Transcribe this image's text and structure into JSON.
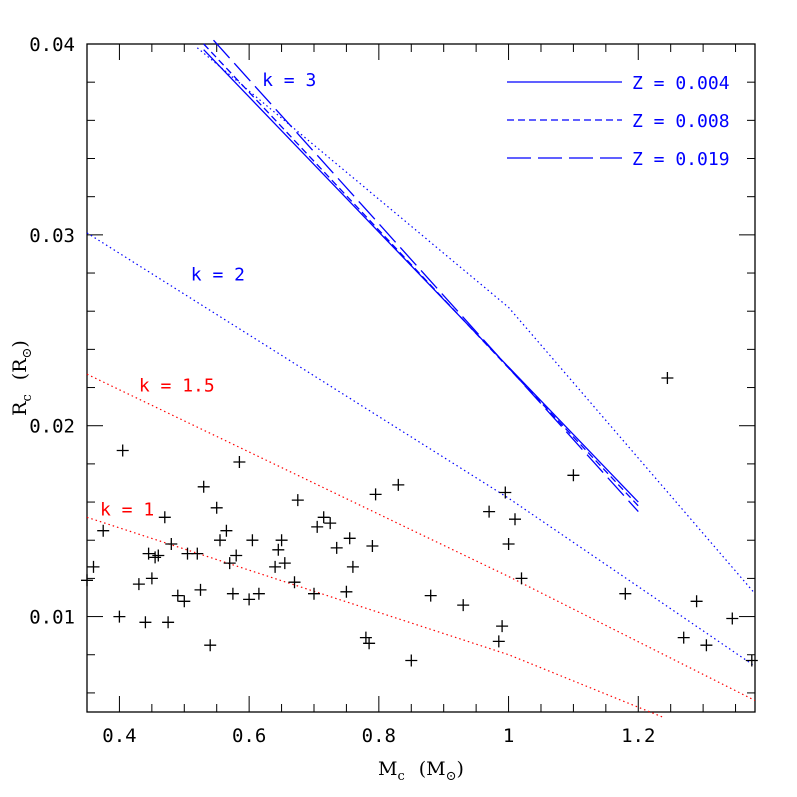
{
  "chart_data": {
    "type": "scatter",
    "title": "",
    "xlabel": "M",
    "xlabel_sub": "c",
    "xlabel_unit_open": "(M",
    "xlabel_unit_close": ")",
    "ylabel": "R",
    "ylabel_sub": "c",
    "ylabel_unit_open": "(R",
    "ylabel_unit_close": ")",
    "xlim": [
      0.35,
      1.38
    ],
    "ylim": [
      0.005,
      0.04
    ],
    "x_ticks": [
      {
        "value": 0.4,
        "label": "0.4"
      },
      {
        "value": 0.6,
        "label": "0.6"
      },
      {
        "value": 0.8,
        "label": "0.8"
      },
      {
        "value": 1.0,
        "label": "1"
      },
      {
        "value": 1.2,
        "label": "1.2"
      }
    ],
    "y_ticks": [
      {
        "value": 0.01,
        "label": "0.01"
      },
      {
        "value": 0.02,
        "label": "0.02"
      },
      {
        "value": 0.03,
        "label": "0.03"
      },
      {
        "value": 0.04,
        "label": "0.04"
      }
    ],
    "x_minor_step": 0.05,
    "y_minor_step": 0.002,
    "grid": false,
    "legend_position": "top-right",
    "colors": {
      "blue": "#0000ff",
      "red": "#ff0000",
      "black": "#000000"
    },
    "legend": [
      {
        "label": "Z = 0.004",
        "dash": "solid"
      },
      {
        "label": "Z = 0.008",
        "dash": "short-dash"
      },
      {
        "label": "Z = 0.019",
        "dash": "long-dash"
      }
    ],
    "dotted_lines": [
      {
        "k": "2",
        "color": "#0000ff",
        "points": [
          [
            0.35,
            0.0301
          ],
          [
            1.0,
            0.0162
          ],
          [
            1.38,
            0.0074
          ]
        ]
      },
      {
        "k": "1.5",
        "color": "#ff0000",
        "points": [
          [
            0.35,
            0.0227
          ],
          [
            1.0,
            0.0121
          ],
          [
            1.38,
            0.0056
          ]
        ]
      },
      {
        "k": "1",
        "color": "#ff0000",
        "points": [
          [
            0.35,
            0.0152
          ],
          [
            1.0,
            0.008
          ],
          [
            1.24,
            0.0047
          ]
        ]
      },
      {
        "k": "3",
        "color": "#0000ff",
        "points": [
          [
            0.52,
            0.0398
          ],
          [
            1.0,
            0.0262
          ],
          [
            1.38,
            0.0112
          ]
        ]
      }
    ],
    "metallicity_lines": [
      {
        "label": "Z = 0.004",
        "dash": "solid",
        "points": [
          [
            0.53,
            0.0397
          ],
          [
            1.2,
            0.016
          ]
        ]
      },
      {
        "label": "Z = 0.008",
        "dash": "short-dash",
        "points": [
          [
            0.53,
            0.04
          ],
          [
            1.2,
            0.0158
          ]
        ]
      },
      {
        "label": "Z = 0.019",
        "dash": "long-dash",
        "points": [
          [
            0.545,
            0.0402
          ],
          [
            1.2,
            0.0155
          ]
        ]
      }
    ],
    "annotations": [
      {
        "text": "k = 3",
        "x": 0.62,
        "y": 0.0378,
        "color": "#0000ff"
      },
      {
        "text": "k = 2",
        "x": 0.51,
        "y": 0.0276,
        "color": "#0000ff"
      },
      {
        "text": "k = 1.5",
        "x": 0.43,
        "y": 0.0218,
        "color": "#ff0000"
      },
      {
        "text": "k = 1",
        "x": 0.37,
        "y": 0.0153,
        "color": "#ff0000"
      }
    ],
    "points": [
      [
        0.35,
        0.0119
      ],
      [
        0.36,
        0.0126
      ],
      [
        0.375,
        0.0145
      ],
      [
        0.4,
        0.01
      ],
      [
        0.405,
        0.0187
      ],
      [
        0.43,
        0.0117
      ],
      [
        0.44,
        0.0097
      ],
      [
        0.445,
        0.0133
      ],
      [
        0.45,
        0.012
      ],
      [
        0.455,
        0.0131
      ],
      [
        0.46,
        0.0132
      ],
      [
        0.47,
        0.0152
      ],
      [
        0.475,
        0.0097
      ],
      [
        0.48,
        0.0138
      ],
      [
        0.49,
        0.0111
      ],
      [
        0.5,
        0.0108
      ],
      [
        0.505,
        0.0133
      ],
      [
        0.52,
        0.0133
      ],
      [
        0.525,
        0.0114
      ],
      [
        0.53,
        0.0168
      ],
      [
        0.54,
        0.0085
      ],
      [
        0.55,
        0.0157
      ],
      [
        0.555,
        0.014
      ],
      [
        0.565,
        0.0145
      ],
      [
        0.57,
        0.0128
      ],
      [
        0.575,
        0.0112
      ],
      [
        0.58,
        0.0132
      ],
      [
        0.585,
        0.0181
      ],
      [
        0.6,
        0.0109
      ],
      [
        0.605,
        0.014
      ],
      [
        0.615,
        0.0112
      ],
      [
        0.64,
        0.0126
      ],
      [
        0.645,
        0.0135
      ],
      [
        0.65,
        0.014
      ],
      [
        0.655,
        0.0128
      ],
      [
        0.67,
        0.0118
      ],
      [
        0.675,
        0.0161
      ],
      [
        0.7,
        0.0112
      ],
      [
        0.705,
        0.0147
      ],
      [
        0.715,
        0.0152
      ],
      [
        0.725,
        0.0149
      ],
      [
        0.735,
        0.0136
      ],
      [
        0.75,
        0.0113
      ],
      [
        0.755,
        0.0141
      ],
      [
        0.76,
        0.0126
      ],
      [
        0.78,
        0.0089
      ],
      [
        0.785,
        0.0086
      ],
      [
        0.79,
        0.0137
      ],
      [
        0.795,
        0.0164
      ],
      [
        0.83,
        0.0169
      ],
      [
        0.85,
        0.0077
      ],
      [
        0.88,
        0.0111
      ],
      [
        0.93,
        0.0106
      ],
      [
        0.97,
        0.0155
      ],
      [
        0.985,
        0.0087
      ],
      [
        0.99,
        0.0095
      ],
      [
        0.995,
        0.0165
      ],
      [
        1.0,
        0.0138
      ],
      [
        1.01,
        0.0151
      ],
      [
        1.02,
        0.012
      ],
      [
        1.1,
        0.0174
      ],
      [
        1.18,
        0.0112
      ],
      [
        1.245,
        0.0225
      ],
      [
        1.27,
        0.0089
      ],
      [
        1.29,
        0.0108
      ],
      [
        1.305,
        0.0085
      ],
      [
        1.345,
        0.0099
      ],
      [
        1.375,
        0.0077
      ]
    ]
  }
}
